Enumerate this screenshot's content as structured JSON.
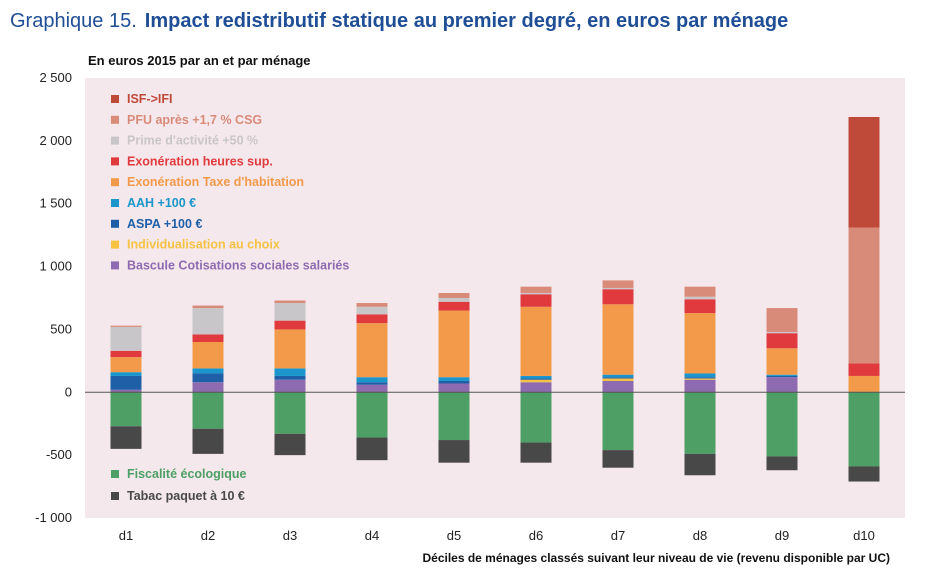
{
  "title": {
    "label": "Graphique 15.",
    "text": "Impact redistributif statique au premier degré, en euros par ménage"
  },
  "chart_data": {
    "type": "bar",
    "stacked": true,
    "unit_label": "En euros 2015 par an et par ménage",
    "xlabel": "Déciles de ménages classés  suivant leur niveau de vie (revenu disponible par UC)",
    "ylabel": "",
    "ylim": [
      -1000,
      2500
    ],
    "yticks": [
      -1000,
      -500,
      0,
      500,
      1000,
      1500,
      2000,
      2500
    ],
    "ytick_labels": [
      "-1 000",
      "-500",
      "0",
      "500",
      "1 000",
      "1 500",
      "2 000",
      "2 500"
    ],
    "categories": [
      "d1",
      "d2",
      "d3",
      "d4",
      "d5",
      "d6",
      "d7",
      "d8",
      "d9",
      "d10"
    ],
    "series": [
      {
        "name": "Bascule Cotisations sociales salariés",
        "color": "#8e6bb0",
        "values": [
          20,
          80,
          100,
          60,
          70,
          80,
          90,
          100,
          120,
          0
        ]
      },
      {
        "name": "Individualisation au choix",
        "color": "#f5c242",
        "values": [
          0,
          0,
          0,
          0,
          0,
          20,
          20,
          10,
          0,
          0
        ]
      },
      {
        "name": "ASPA +100 €",
        "color": "#1f5fa8",
        "values": [
          110,
          70,
          30,
          20,
          20,
          10,
          10,
          10,
          10,
          0
        ]
      },
      {
        "name": "AAH +100 €",
        "color": "#1b96cc",
        "values": [
          30,
          40,
          60,
          40,
          30,
          20,
          20,
          30,
          10,
          0
        ]
      },
      {
        "name": "Exonération Taxe d'habitation",
        "color": "#f29a4a",
        "values": [
          120,
          210,
          310,
          430,
          530,
          550,
          560,
          480,
          210,
          130
        ]
      },
      {
        "name": "Exonération heures sup.",
        "color": "#e03a3e",
        "values": [
          50,
          60,
          70,
          70,
          70,
          100,
          120,
          110,
          120,
          100
        ]
      },
      {
        "name": "Prime d'activité +50 %",
        "color": "#c8c6c8",
        "values": [
          190,
          210,
          140,
          60,
          30,
          10,
          10,
          20,
          10,
          0
        ]
      },
      {
        "name": "PFU après +1,7 % CSG",
        "color": "#d98b7a",
        "values": [
          10,
          20,
          20,
          30,
          40,
          50,
          60,
          80,
          190,
          1080
        ]
      },
      {
        "name": "ISF->IFI",
        "color": "#c04a3a",
        "values": [
          0,
          0,
          0,
          0,
          0,
          0,
          0,
          0,
          0,
          880
        ]
      },
      {
        "name": "Fiscalité écologique",
        "color": "#4e9f66",
        "values": [
          -270,
          -290,
          -330,
          -360,
          -380,
          -400,
          -460,
          -490,
          -510,
          -590
        ]
      },
      {
        "name": "Tabac paquet à 10 €",
        "color": "#484848",
        "values": [
          -180,
          -200,
          -170,
          -180,
          -180,
          -160,
          -140,
          -170,
          -110,
          -120
        ]
      }
    ],
    "legend_top": [
      "ISF->IFI",
      "PFU après +1,7 % CSG",
      "Prime d'activité +50 %",
      "Exonération heures sup.",
      "Exonération Taxe d'habitation",
      "AAH +100 €",
      "ASPA +100 €",
      "Individualisation au choix",
      "Bascule Cotisations sociales salariés"
    ],
    "legend_bottom": [
      "Fiscalité écologique",
      "Tabac paquet à 10 €"
    ],
    "legend_position": "inside-left",
    "grid": false
  }
}
